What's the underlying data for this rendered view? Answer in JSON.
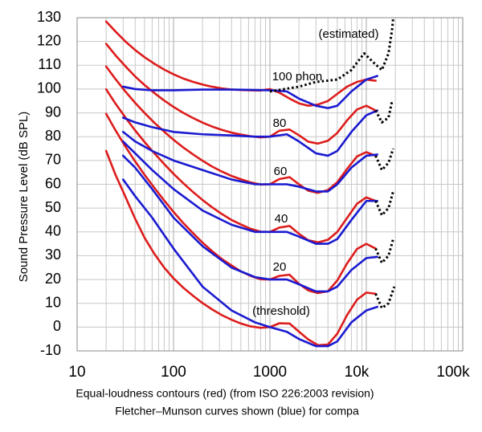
{
  "chart_data": {
    "type": "line",
    "log_x": true,
    "grid": true,
    "xlabel": [
      "Equal-loudness contours (red) (from ISO 226:2003 revision)",
      "Fletcher–Munson curves shown (blue) for compa"
    ],
    "ylabel": "Sound Pressure Level (dB SPL)",
    "xlim": [
      10,
      100000
    ],
    "ylim": [
      -10,
      130
    ],
    "xticks": [
      10,
      100,
      1000,
      {
        "value": 10000,
        "label": "10k"
      },
      {
        "value": 100000,
        "label": "100k"
      }
    ],
    "yticks": [
      -10,
      0,
      10,
      20,
      30,
      40,
      50,
      60,
      70,
      80,
      90,
      100,
      110,
      120,
      130
    ],
    "annotations": [
      "(estimated)",
      "100 phon",
      "80",
      "60",
      "40",
      "20",
      "(threshold)"
    ],
    "series": [
      {
        "color": "#dd1c1c",
        "x": [
          20,
          25,
          31.5,
          40,
          50,
          63,
          80,
          100,
          125,
          160,
          200,
          250,
          315,
          400,
          500,
          630,
          800,
          1000,
          1250,
          1600,
          2000,
          2500,
          3150,
          4000,
          5000,
          6300,
          8000,
          10000,
          12500
        ],
        "values": [
          74,
          64,
          55,
          45.5,
          37.6,
          30.9,
          25,
          20.5,
          16.7,
          13.1,
          10.1,
          7.5,
          5.1,
          3.1,
          1.5,
          0.3,
          -0.3,
          0,
          1.6,
          1.5,
          -1.9,
          -5.2,
          -7.6,
          -7.3,
          -2.8,
          5,
          11.5,
          14.5,
          14
        ]
      },
      {
        "color": "#dd1c1c",
        "x": [
          20,
          25,
          31.5,
          40,
          50,
          63,
          80,
          100,
          125,
          160,
          200,
          250,
          315,
          400,
          500,
          630,
          800,
          1000,
          1250,
          1600,
          2000,
          2500,
          3150,
          4000,
          5000,
          6300,
          8000,
          10000,
          12500
        ],
        "values": [
          89.6,
          82.7,
          76,
          69.6,
          64,
          58.6,
          53.2,
          48.4,
          43.9,
          39.4,
          35.5,
          32,
          28.7,
          25.9,
          23.4,
          21.5,
          20.1,
          20,
          21.5,
          22,
          18.2,
          15.4,
          14.3,
          15.1,
          19.6,
          26.7,
          32.8,
          35,
          33
        ]
      },
      {
        "color": "#dd1c1c",
        "x": [
          20,
          25,
          31.5,
          40,
          50,
          63,
          80,
          100,
          125,
          160,
          200,
          250,
          315,
          400,
          500,
          630,
          800,
          1000,
          1250,
          1600,
          2000,
          2500,
          3150,
          4000,
          5000,
          6300,
          8000,
          10000,
          12500
        ],
        "values": [
          99.9,
          93.9,
          88.2,
          82.6,
          77.8,
          73.1,
          68.5,
          64.4,
          60.6,
          56.7,
          53.4,
          50.4,
          47.6,
          45,
          43.1,
          41.3,
          40.1,
          40,
          41.8,
          42.5,
          39.2,
          36.5,
          35.6,
          36.7,
          40,
          45.8,
          51.8,
          54.5,
          53
        ]
      },
      {
        "color": "#dd1c1c",
        "x": [
          20,
          25,
          31.5,
          40,
          50,
          63,
          80,
          100,
          125,
          160,
          200,
          250,
          315,
          400,
          500,
          630,
          800,
          1000,
          1250,
          1600,
          2000,
          2500,
          3150,
          4000,
          5000,
          6300,
          8000,
          10000,
          12500
        ],
        "values": [
          109.5,
          104.2,
          99.1,
          94.2,
          90,
          85.9,
          82.1,
          78.7,
          75.6,
          72.5,
          69.9,
          67.5,
          65.4,
          63.5,
          62.1,
          60.8,
          59.9,
          60,
          62.2,
          63,
          60,
          57.3,
          56.4,
          57.6,
          60.9,
          66.4,
          71.7,
          73.5,
          72
        ]
      },
      {
        "color": "#dd1c1c",
        "x": [
          20,
          25,
          31.5,
          40,
          50,
          63,
          80,
          100,
          125,
          160,
          200,
          250,
          315,
          400,
          500,
          630,
          800,
          1000,
          1250,
          1600,
          2000,
          2500,
          3150,
          4000,
          5000,
          6300,
          8000,
          10000,
          12500
        ],
        "values": [
          119,
          114.2,
          109.7,
          105.3,
          101.7,
          98.4,
          95.2,
          92.5,
          90.1,
          87.8,
          85.9,
          84.3,
          82.9,
          81.7,
          80.9,
          80.2,
          79.7,
          80,
          82.5,
          83,
          80.6,
          77.9,
          77.1,
          78.3,
          81.6,
          86.8,
          91.4,
          93,
          91
        ]
      },
      {
        "color": "#dd1c1c",
        "x": [
          20,
          25,
          31.5,
          40,
          50,
          63,
          80,
          100,
          125,
          160,
          200,
          250,
          315,
          400,
          500,
          630,
          800,
          1000,
          1250,
          1600,
          2000,
          2500,
          3150,
          4000,
          5000,
          6300,
          8000,
          10000,
          12500
        ],
        "values": [
          128.4,
          124.2,
          120.1,
          116.4,
          113.4,
          110.7,
          108.2,
          106.2,
          104.5,
          103,
          101.9,
          101,
          100.3,
          99.8,
          99.6,
          99.5,
          99.4,
          100,
          98.5,
          96,
          94,
          93,
          93.5,
          95,
          98,
          101,
          103,
          104,
          103.5
        ]
      },
      {
        "color": "#1a1ad0",
        "x": [
          30,
          40,
          60,
          100,
          200,
          400,
          700,
          1000,
          1500,
          2000,
          3000,
          4000,
          5000,
          7000,
          10000,
          13000
        ],
        "values": [
          62,
          55,
          46,
          33,
          17,
          7,
          2,
          0,
          -2,
          -5,
          -8,
          -8,
          -6,
          2,
          7,
          8.5
        ]
      },
      {
        "color": "#1a1ad0",
        "x": [
          30,
          40,
          60,
          100,
          200,
          400,
          700,
          1000,
          1500,
          2000,
          3000,
          4000,
          5000,
          7000,
          10000,
          13000
        ],
        "values": [
          72,
          67,
          58,
          46,
          34,
          25,
          21,
          20,
          20,
          18,
          15,
          15,
          17,
          24,
          29,
          29.5
        ]
      },
      {
        "color": "#1a1ad0",
        "x": [
          30,
          40,
          60,
          100,
          200,
          400,
          700,
          1000,
          1500,
          2000,
          3000,
          4000,
          5000,
          7000,
          10000,
          13000
        ],
        "values": [
          78,
          73,
          66,
          58,
          49,
          43,
          40,
          40,
          40,
          38,
          35,
          35,
          37,
          45,
          53,
          53
        ]
      },
      {
        "color": "#1a1ad0",
        "x": [
          30,
          40,
          60,
          100,
          200,
          400,
          700,
          1000,
          1500,
          2000,
          3000,
          4000,
          5000,
          7000,
          10000,
          13000
        ],
        "values": [
          82,
          78,
          74,
          70,
          66,
          62,
          60,
          60,
          60,
          59,
          57,
          57,
          60,
          67,
          72,
          72.5
        ]
      },
      {
        "color": "#1a1ad0",
        "x": [
          30,
          40,
          60,
          100,
          200,
          400,
          700,
          1000,
          1500,
          2000,
          3000,
          4000,
          5000,
          7000,
          10000,
          13000
        ],
        "values": [
          88,
          86,
          84,
          82,
          81,
          80.5,
          80,
          80,
          81,
          78,
          73,
          72,
          74,
          82,
          89,
          91
        ]
      },
      {
        "color": "#1a1ad0",
        "x": [
          30,
          40,
          60,
          100,
          200,
          400,
          700,
          1000,
          1500,
          2000,
          3000,
          4000,
          5000,
          7000,
          10000,
          13000
        ],
        "values": [
          101,
          100,
          99.5,
          99.5,
          99.8,
          99.8,
          99.6,
          99.5,
          99,
          96,
          93,
          92,
          93,
          99,
          104,
          105.5
        ]
      },
      {
        "color": "#000000",
        "dashed": true,
        "x": [
          1000,
          2000,
          3000,
          5000,
          7000,
          9500,
          12000,
          14500,
          17000,
          18500,
          19000
        ],
        "values": [
          99,
          101,
          103,
          104,
          108,
          115,
          111,
          108,
          115,
          125,
          130
        ]
      },
      {
        "color": "#000000",
        "dashed": true,
        "x": [
          12500,
          14500,
          17000,
          18500
        ],
        "values": [
          91,
          86,
          88,
          95
        ]
      },
      {
        "color": "#000000",
        "dashed": true,
        "x": [
          12500,
          14500,
          17000,
          19000
        ],
        "values": [
          72,
          66,
          69,
          75
        ]
      },
      {
        "color": "#000000",
        "dashed": true,
        "x": [
          12500,
          14500,
          17000,
          19000
        ],
        "values": [
          53,
          47,
          50,
          57
        ]
      },
      {
        "color": "#000000",
        "dashed": true,
        "x": [
          12500,
          14500,
          17000,
          19000
        ],
        "values": [
          33,
          27,
          30,
          37
        ]
      },
      {
        "color": "#000000",
        "dashed": true,
        "x": [
          12500,
          14500,
          17000,
          19500
        ],
        "values": [
          14,
          8,
          10,
          17
        ]
      }
    ]
  }
}
